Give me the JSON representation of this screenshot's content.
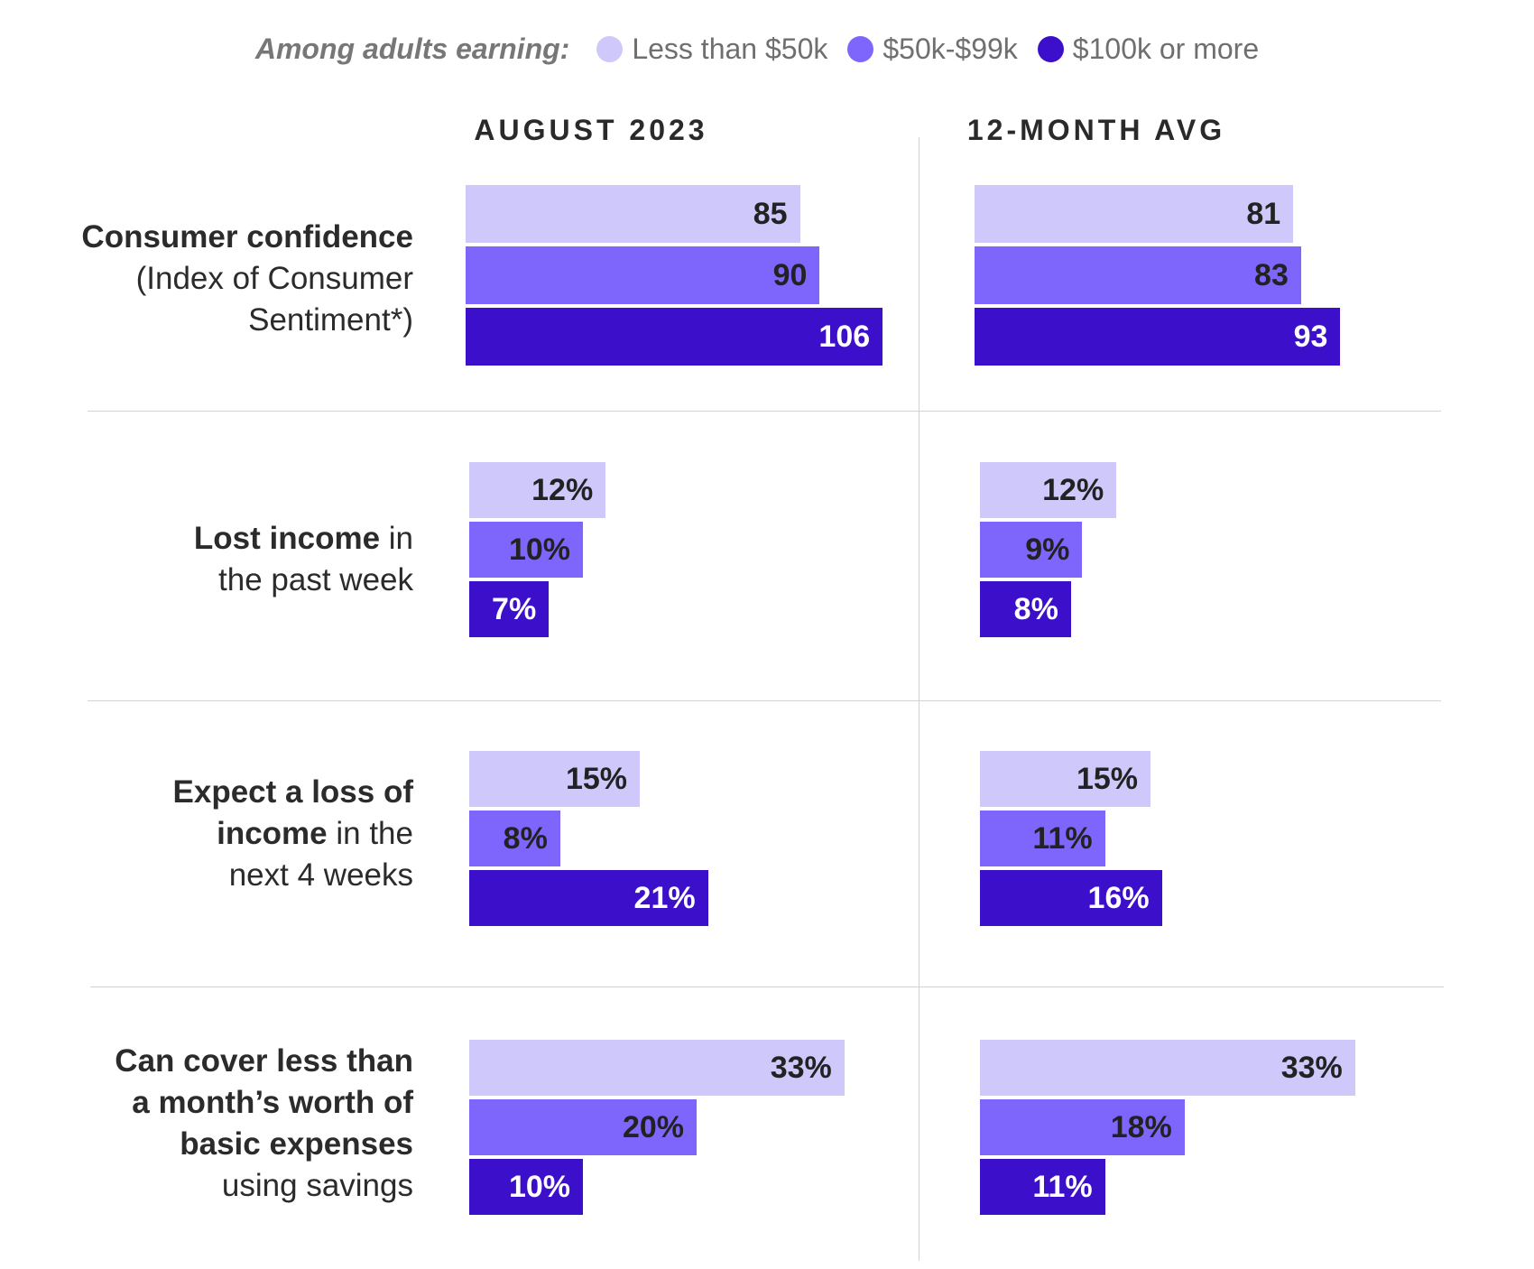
{
  "legend": {
    "lead": "Among adults earning:",
    "items": [
      {
        "label": "Less than $50k",
        "color": "#cfc8fb"
      },
      {
        "label": "$50k-$99k",
        "color": "#7e66fd"
      },
      {
        "label": "$100k or more",
        "color": "#3c10cb"
      }
    ]
  },
  "chart_data": {
    "type": "bar",
    "columns": [
      "AUGUST 2023",
      "12-MONTH AVG"
    ],
    "series": [
      {
        "name": "Less than $50k",
        "color": "#cfc8fb",
        "label_color": "#222222"
      },
      {
        "name": "$50k-$99k",
        "color": "#7e66fd",
        "label_color": "#222222"
      },
      {
        "name": "$100k or more",
        "color": "#3c10cb",
        "label_color": "#ffffff"
      }
    ],
    "rows": [
      {
        "label_parts": [
          {
            "text": "Consumer confidence",
            "bold": true,
            "break_after": true
          },
          {
            "text": "(Index of Consumer",
            "bold": false,
            "break_after": true
          },
          {
            "text": "Sentiment*)",
            "bold": false,
            "break_after": false
          }
        ],
        "unit": "",
        "values": [
          [
            85,
            90,
            106
          ],
          [
            81,
            83,
            93
          ]
        ]
      },
      {
        "label_parts": [
          {
            "text": "Lost income",
            "bold": true,
            "break_after": false
          },
          {
            "text": " in",
            "bold": false,
            "break_after": true
          },
          {
            "text": "the past week",
            "bold": false,
            "break_after": false
          }
        ],
        "unit": "%",
        "values": [
          [
            12,
            10,
            7
          ],
          [
            12,
            9,
            8
          ]
        ]
      },
      {
        "label_parts": [
          {
            "text": "Expect a loss of",
            "bold": true,
            "break_after": true
          },
          {
            "text": "income",
            "bold": true,
            "break_after": false
          },
          {
            "text": " in the",
            "bold": false,
            "break_after": true
          },
          {
            "text": "next 4 weeks",
            "bold": false,
            "break_after": false
          }
        ],
        "unit": "%",
        "values": [
          [
            15,
            8,
            21
          ],
          [
            15,
            11,
            16
          ]
        ]
      },
      {
        "label_parts": [
          {
            "text": "Can cover less than",
            "bold": true,
            "break_after": true
          },
          {
            "text": "a month’s worth of",
            "bold": true,
            "break_after": true
          },
          {
            "text": "basic expenses",
            "bold": true,
            "break_after": true
          },
          {
            "text": "using savings",
            "bold": false,
            "break_after": false
          }
        ],
        "unit": "%",
        "values": [
          [
            33,
            20,
            10
          ],
          [
            33,
            18,
            11
          ]
        ]
      }
    ]
  }
}
